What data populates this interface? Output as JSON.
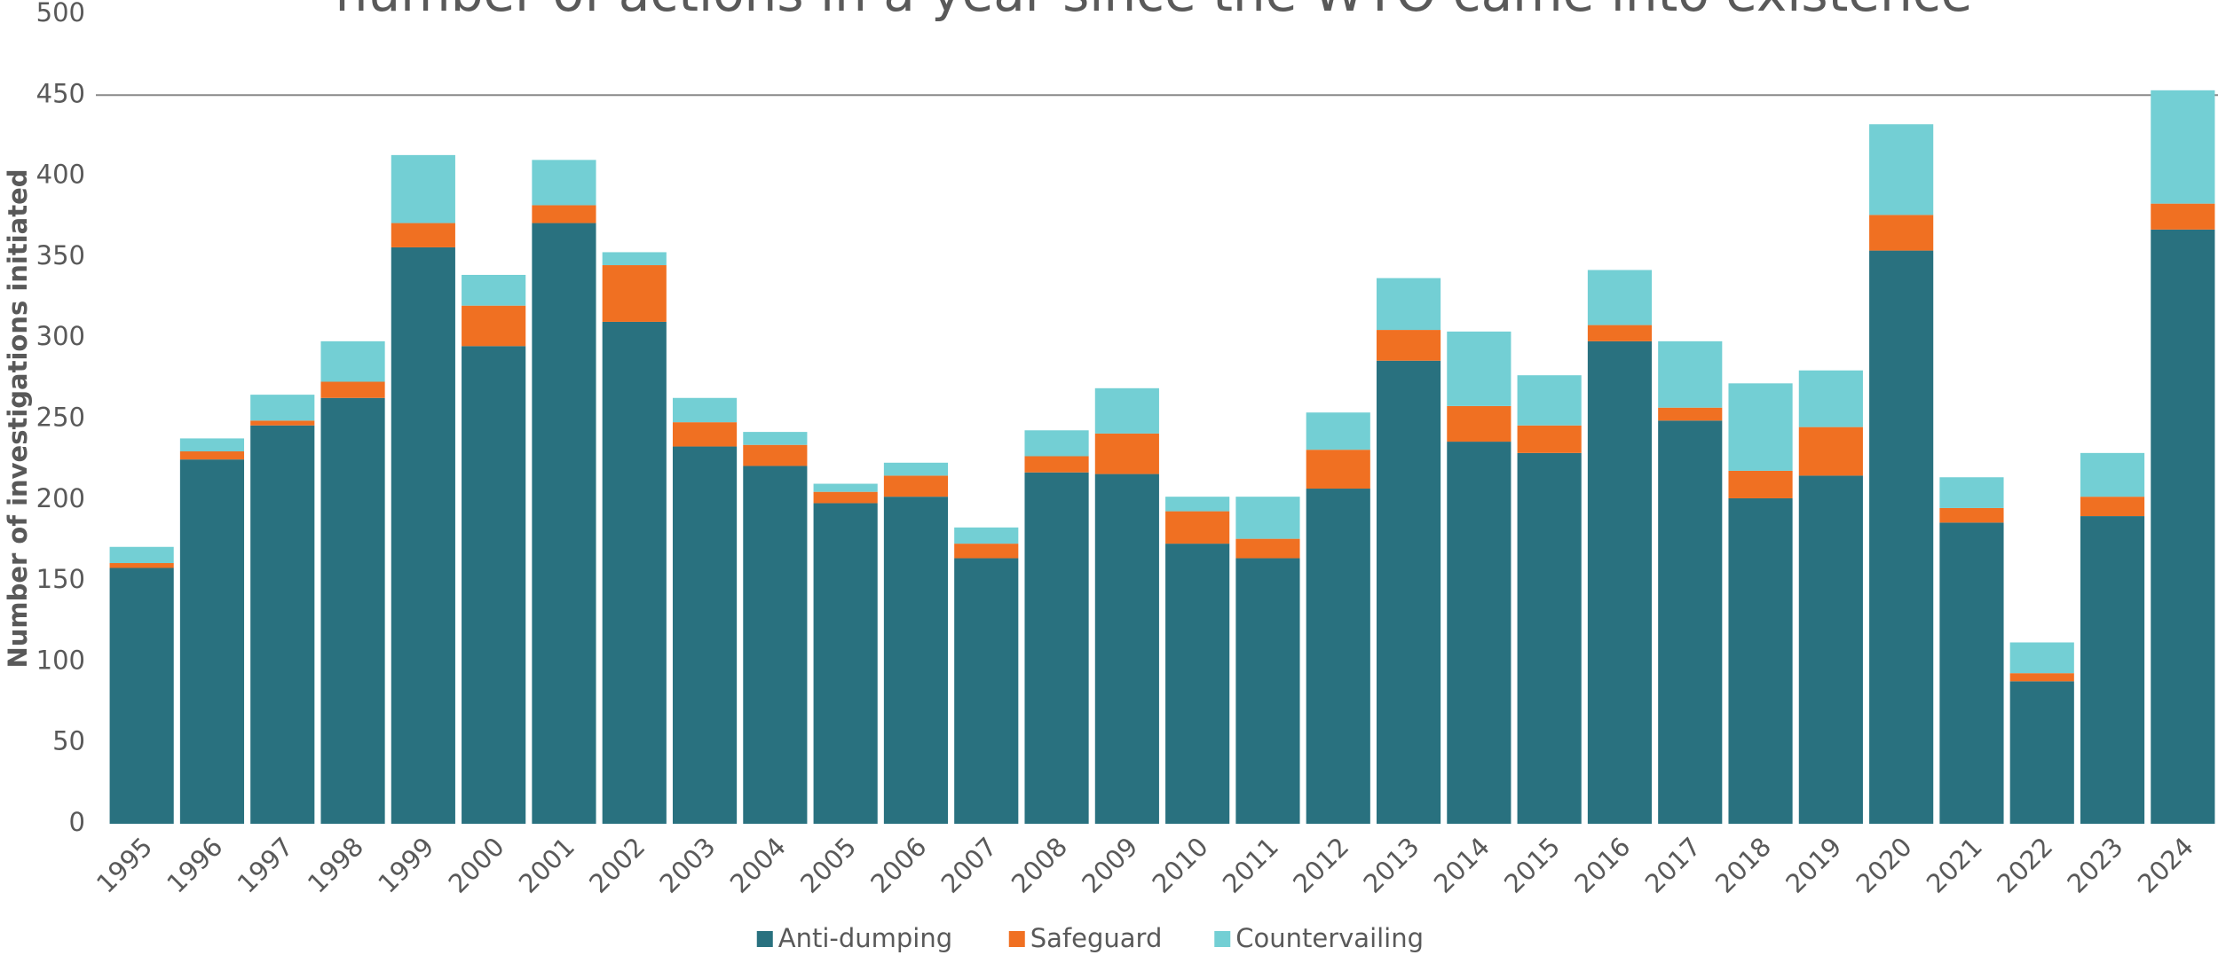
{
  "chart_data": {
    "type": "stacked_bar",
    "title": "number of actions in a year since the WTO came into existence",
    "y_label": "Number of investigations initiated",
    "categories": [
      "1995",
      "1996",
      "1997",
      "1998",
      "1999",
      "2000",
      "2001",
      "2002",
      "2003",
      "2004",
      "2005",
      "2006",
      "2007",
      "2008",
      "2009",
      "2010",
      "2011",
      "2012",
      "2013",
      "2014",
      "2015",
      "2016",
      "2017",
      "2018",
      "2019",
      "2020",
      "2021",
      "2022",
      "2023",
      "2024"
    ],
    "series": [
      {
        "name": "Anti-dumping",
        "color": "#29717f",
        "values": [
          158,
          225,
          246,
          263,
          356,
          295,
          371,
          310,
          233,
          221,
          198,
          202,
          164,
          217,
          216,
          173,
          164,
          207,
          286,
          236,
          229,
          298,
          249,
          201,
          215,
          354,
          186,
          88,
          190,
          367
        ]
      },
      {
        "name": "Safeguard",
        "color": "#f07022",
        "values": [
          3,
          5,
          3,
          10,
          15,
          25,
          11,
          35,
          15,
          13,
          7,
          13,
          9,
          10,
          25,
          20,
          12,
          24,
          19,
          22,
          17,
          10,
          8,
          17,
          30,
          22,
          9,
          5,
          12,
          16
        ]
      },
      {
        "name": "Countervailing",
        "color": "#73cfd4",
        "values": [
          10,
          8,
          16,
          25,
          42,
          19,
          28,
          8,
          15,
          8,
          5,
          8,
          10,
          16,
          28,
          9,
          26,
          23,
          32,
          46,
          31,
          34,
          41,
          54,
          35,
          56,
          19,
          19,
          27,
          70
        ]
      }
    ],
    "ylim": [
      0,
      500
    ],
    "yticks": [
      0,
      50,
      100,
      150,
      200,
      250,
      300,
      350,
      400,
      450,
      500
    ],
    "legend": "bottom"
  }
}
